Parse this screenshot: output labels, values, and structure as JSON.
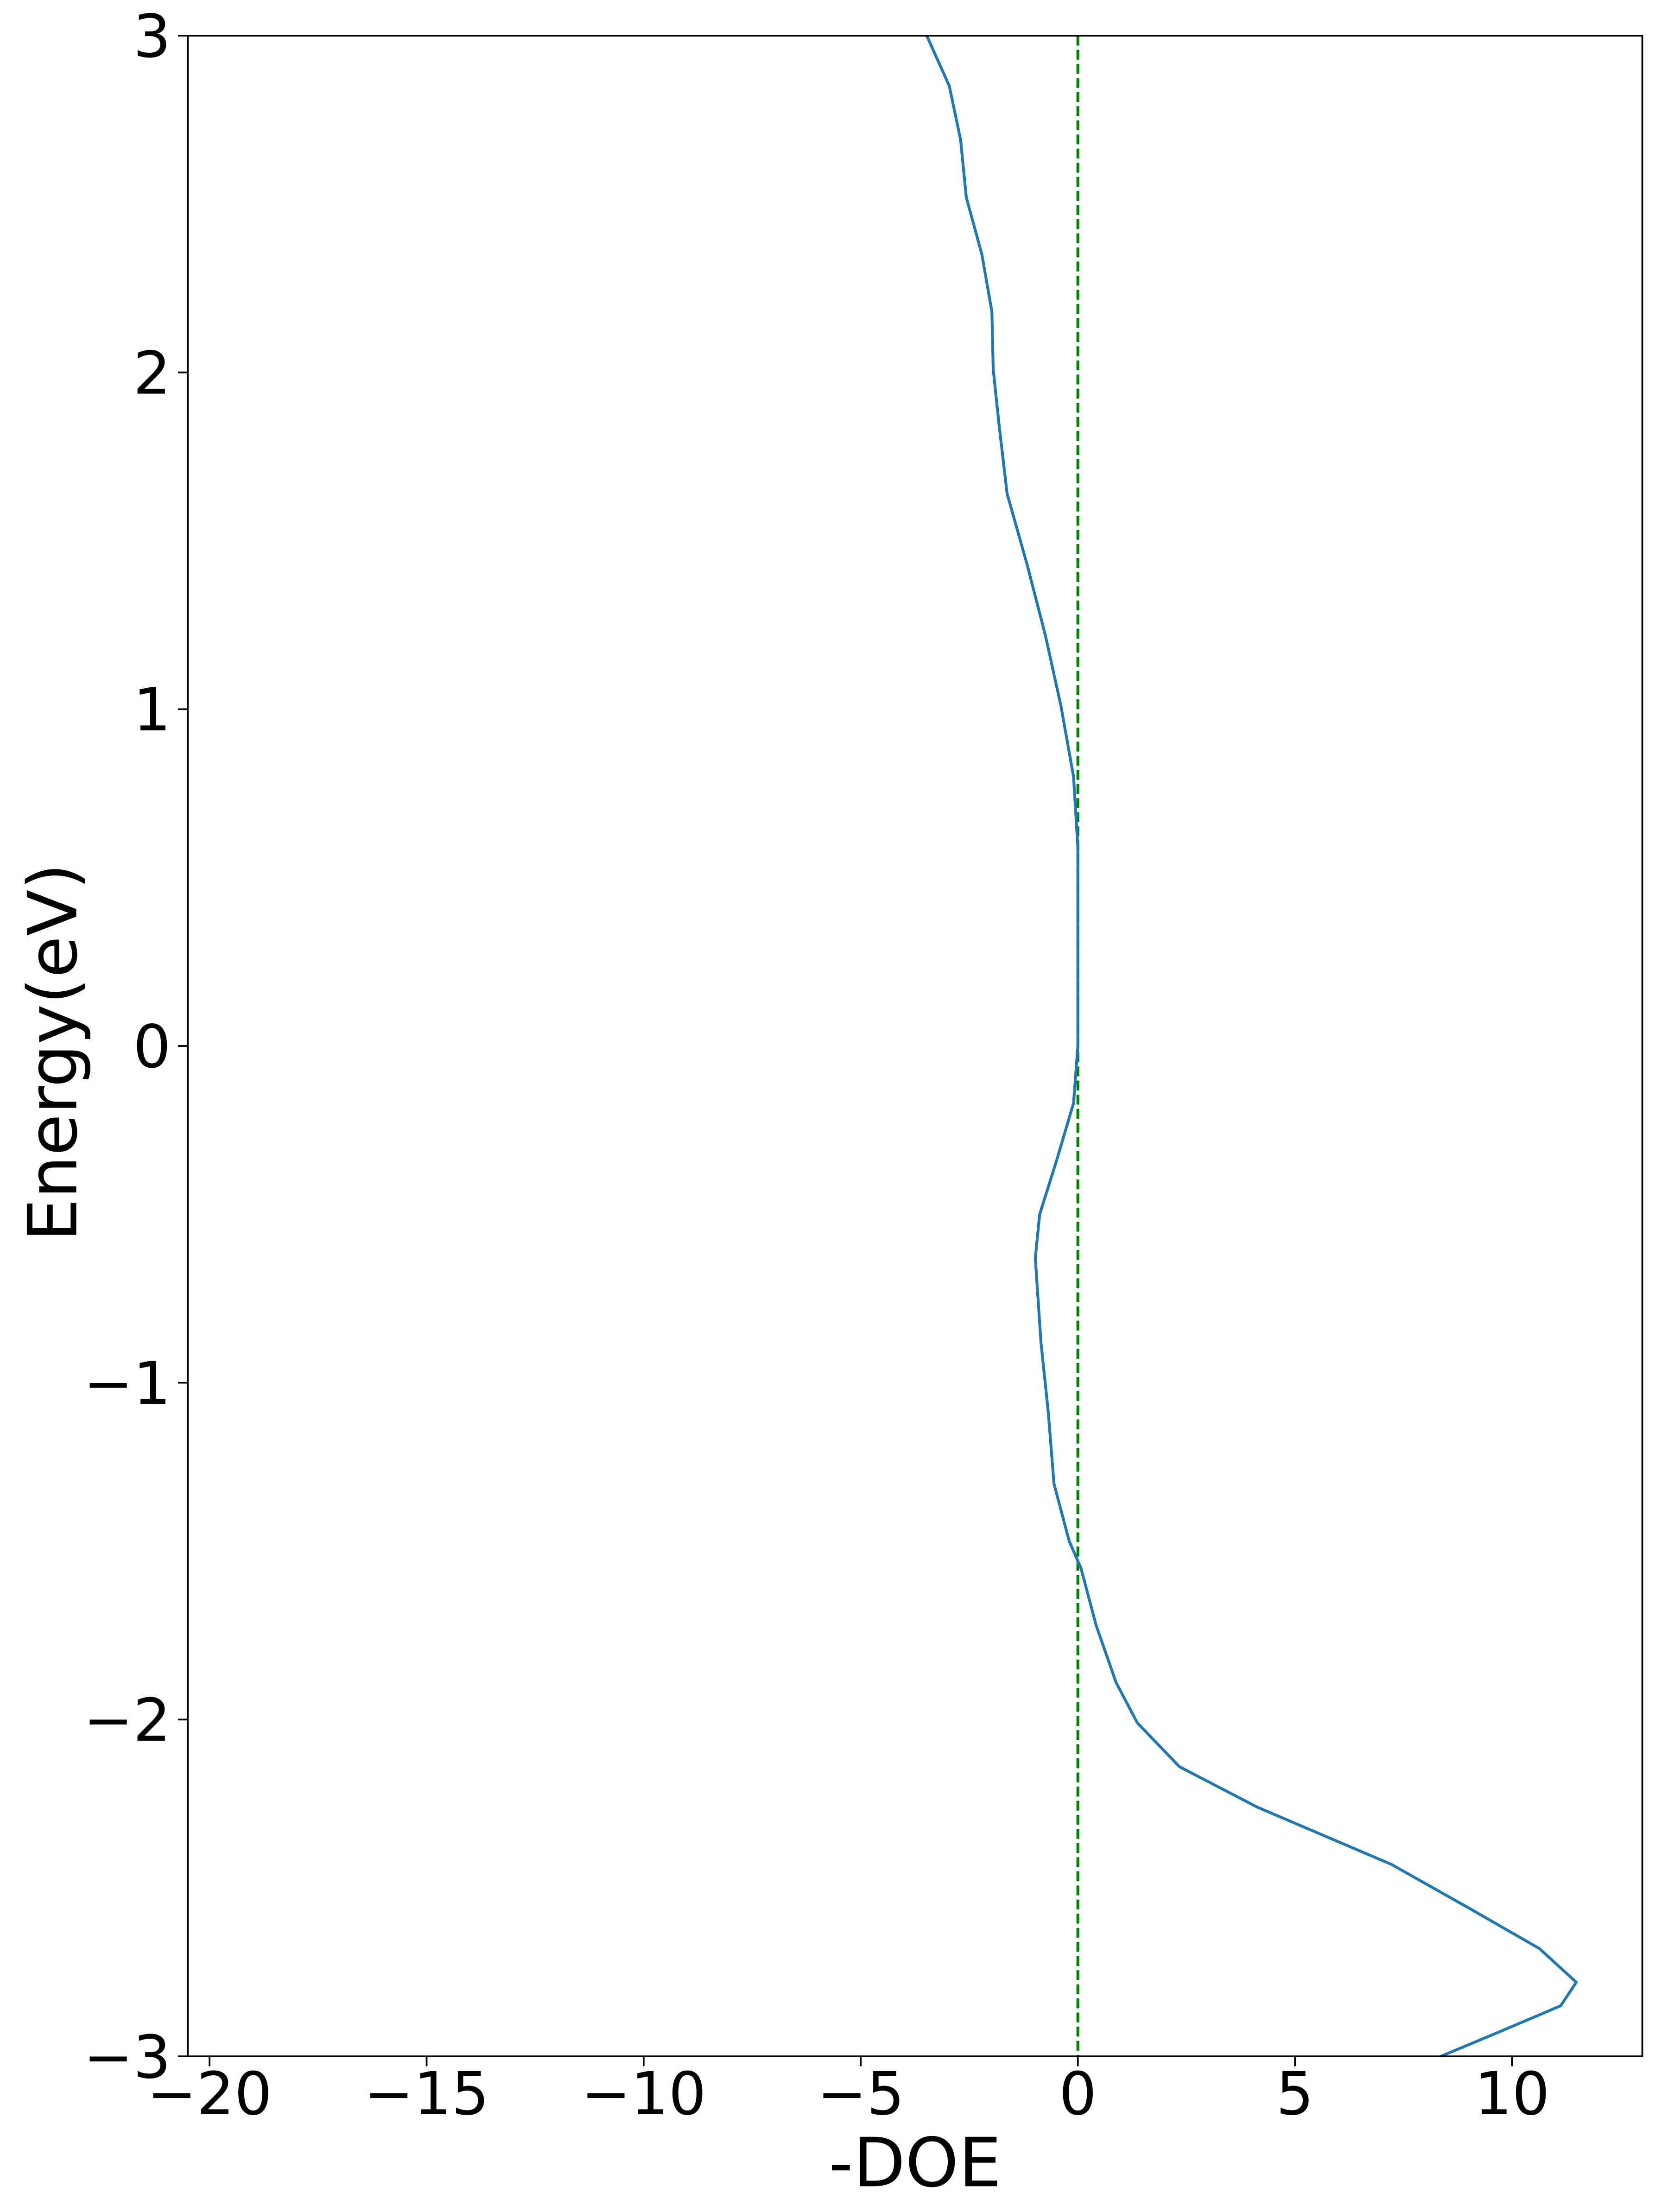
{
  "chart_data": {
    "type": "line",
    "x_label": "-DOE",
    "y_label": "Energy(eV)",
    "x": [
      -3.48,
      -2.96,
      -2.7,
      -2.57,
      -2.21,
      -1.98,
      -1.95,
      -1.82,
      -1.63,
      -1.17,
      -0.75,
      -0.39,
      -0.1,
      0.0,
      0.0,
      -0.1,
      -0.49,
      -0.88,
      -0.98,
      -0.85,
      -0.68,
      -0.55,
      -0.2,
      0.07,
      0.42,
      0.88,
      1.37,
      2.34,
      4.13,
      7.22,
      9.01,
      10.63,
      11.48,
      11.12,
      9.66,
      8.36
    ],
    "series": [
      {
        "color": "#1f77b4",
        "values": [
          3.0,
          2.85,
          2.69,
          2.52,
          2.35,
          2.18,
          2.01,
          1.85,
          1.64,
          1.43,
          1.22,
          1.01,
          0.8,
          0.59,
          0.0,
          -0.17,
          -0.34,
          -0.5,
          -0.63,
          -0.88,
          -1.09,
          -1.3,
          -1.47,
          -1.55,
          -1.72,
          -1.89,
          -2.01,
          -2.14,
          -2.26,
          -2.43,
          -2.56,
          -2.68,
          -2.78,
          -2.85,
          -2.93,
          -3.0
        ]
      }
    ],
    "vline": {
      "x": 0,
      "color": "#008000",
      "dashed": true
    },
    "xlim": [
      -20.5,
      13.0
    ],
    "ylim": [
      -3,
      3
    ],
    "xticks": [
      {
        "value": -20,
        "label": "−20"
      },
      {
        "value": -15,
        "label": "−15"
      },
      {
        "value": -10,
        "label": "−10"
      },
      {
        "value": -5,
        "label": "−5"
      },
      0,
      5,
      10
    ],
    "yticks": [
      {
        "value": -3,
        "label": "−3"
      },
      {
        "value": -2,
        "label": "−2"
      },
      {
        "value": -1,
        "label": "−1"
      },
      0,
      1,
      2,
      3
    ],
    "grid": false
  }
}
